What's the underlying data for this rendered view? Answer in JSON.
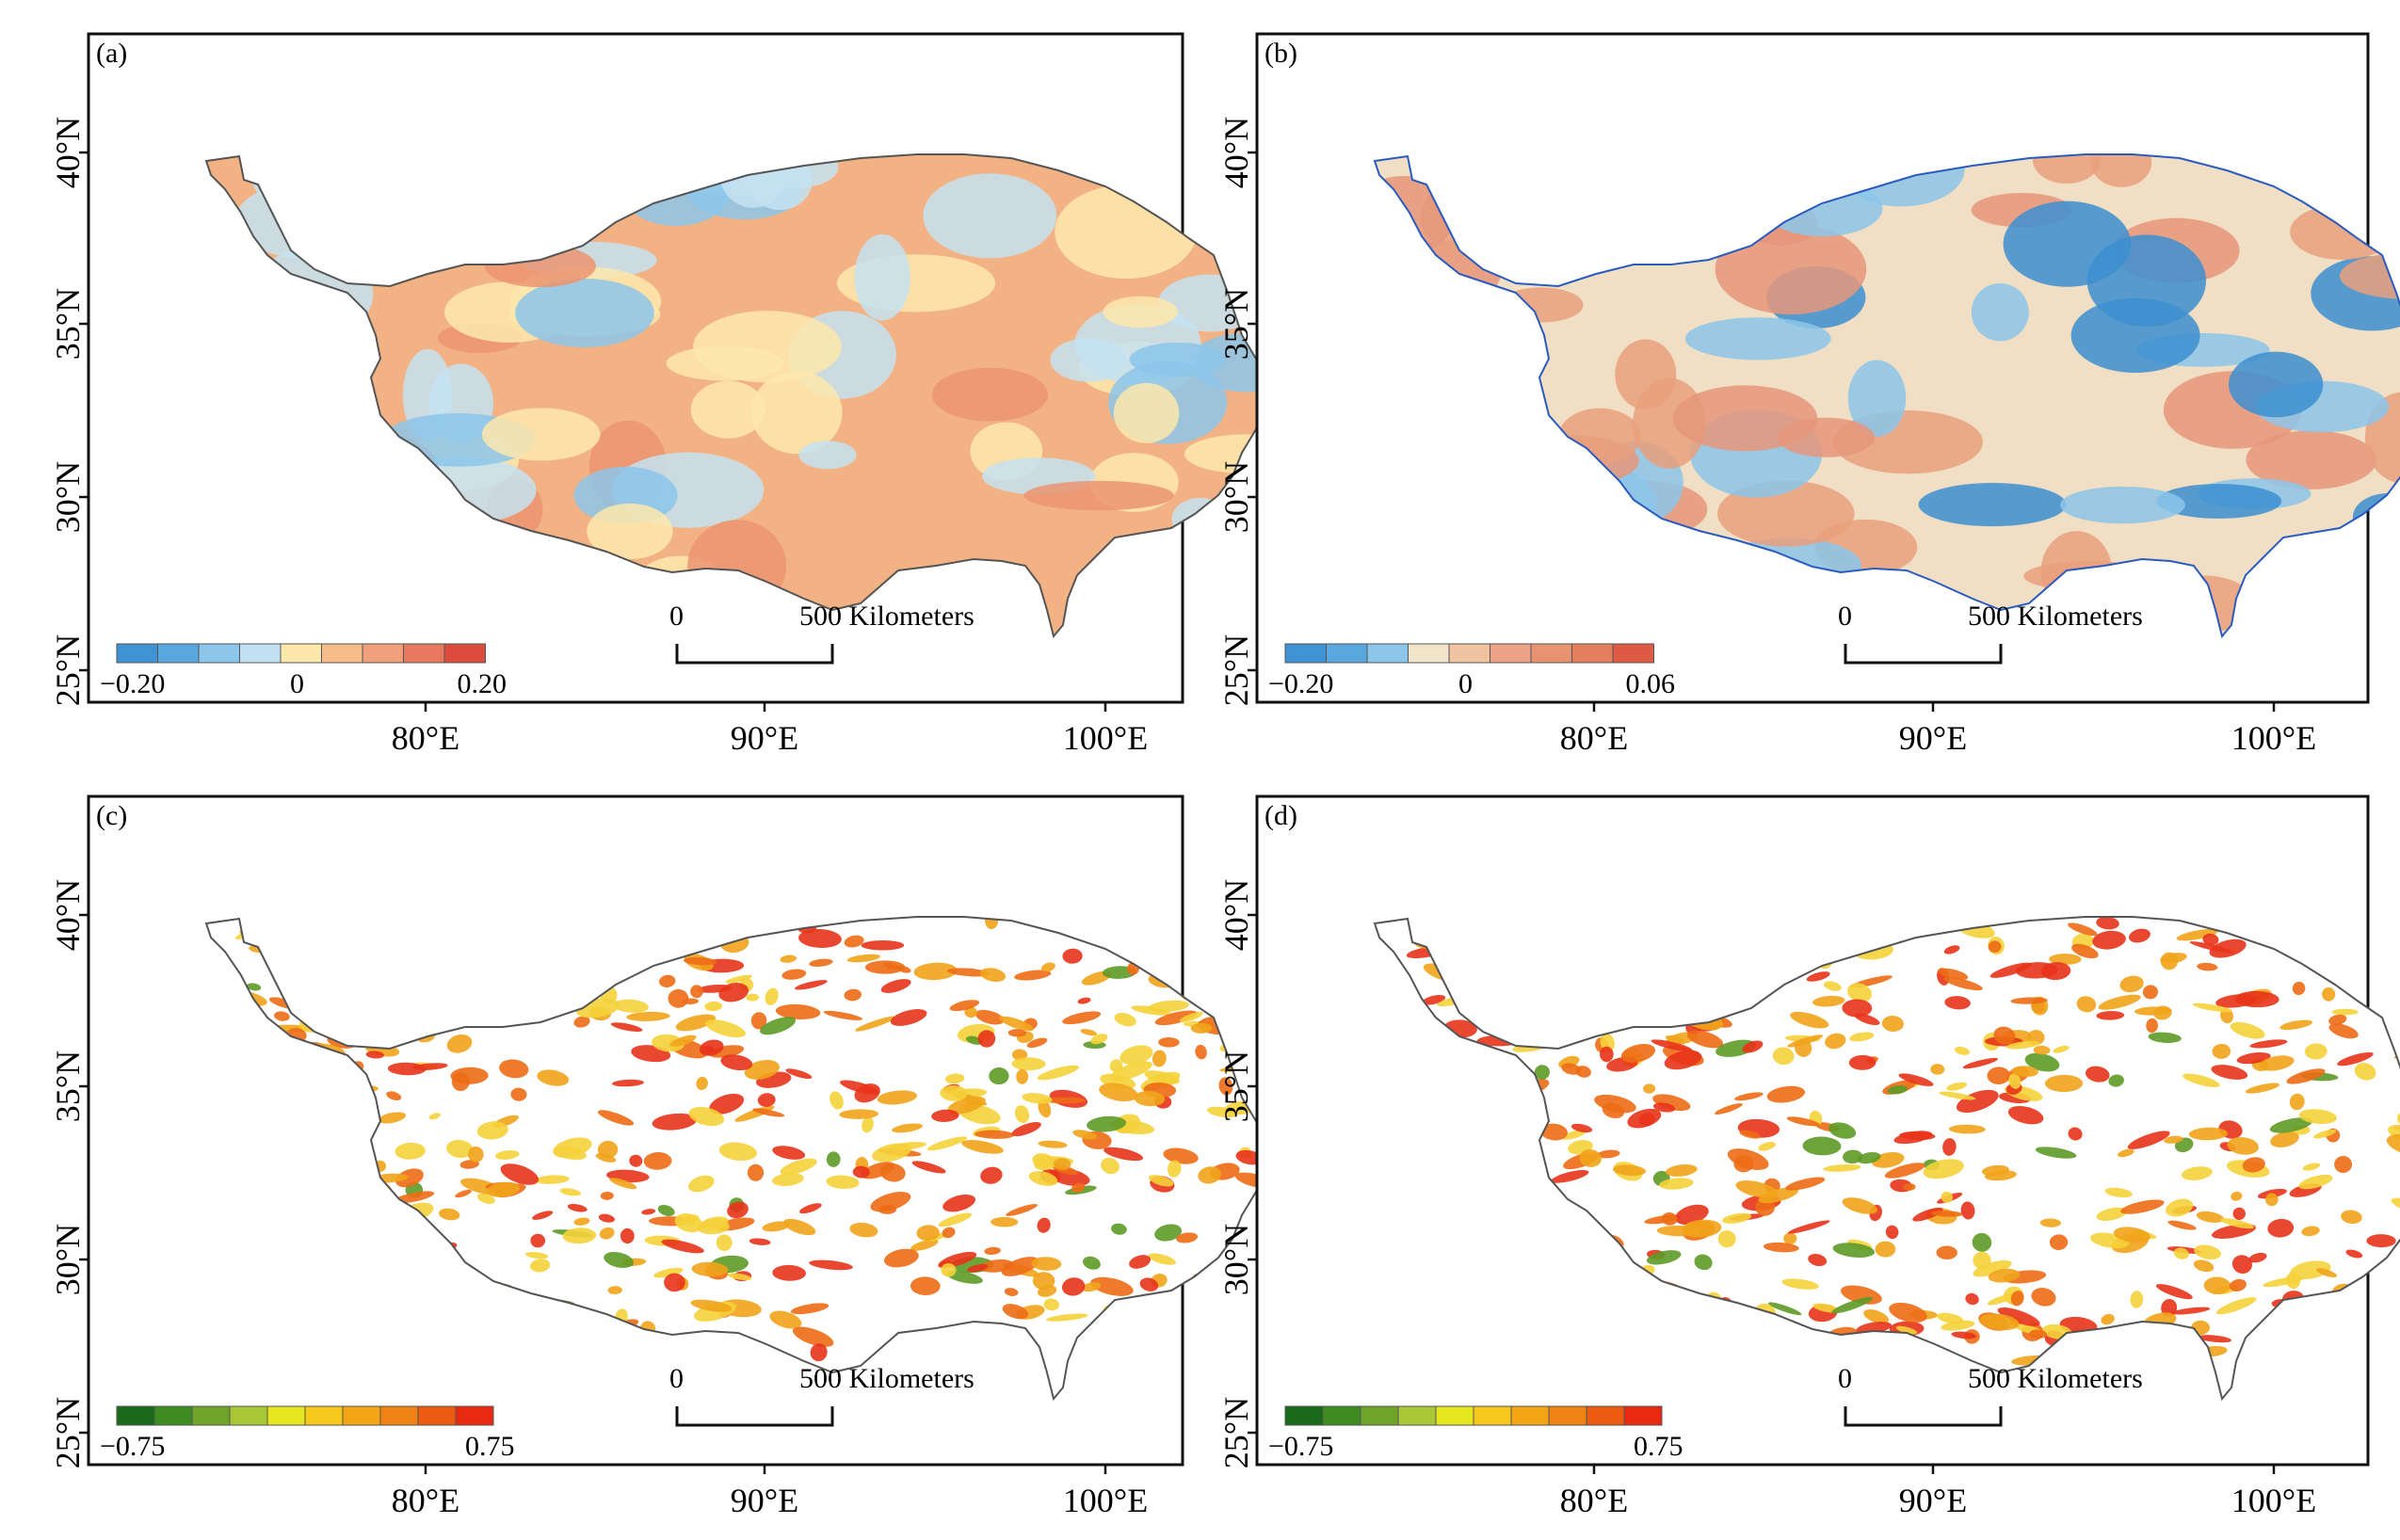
{
  "figure": {
    "panels": [
      {
        "id": "a",
        "label": "(a)",
        "lat_ticks": [
          "40°N",
          "35°N",
          "30°N",
          "25°N"
        ],
        "lon_ticks": [
          "80°E",
          "90°E",
          "100°E"
        ],
        "legend": {
          "min_label": "−0.20",
          "mid_label": "0",
          "max_label": "0.20",
          "colors": [
            "#3f93d3",
            "#5aa6de",
            "#8cc6ea",
            "#c2e0f1",
            "#fde8ab",
            "#f6bd8b",
            "#f0a07a",
            "#e77a5e",
            "#dc4b3e"
          ]
        },
        "scale": {
          "zero_label": "0",
          "dist_label": "500 Kilometers"
        },
        "fill_palette": [
          "#f3b283",
          "#fde8ab",
          "#c4e2f1",
          "#eb9471",
          "#8cc6ea"
        ]
      },
      {
        "id": "b",
        "label": "(b)",
        "lat_ticks": [
          "40°N",
          "35°N",
          "30°N",
          "25°N"
        ],
        "lon_ticks": [
          "80°E",
          "90°E",
          "100°E"
        ],
        "legend": {
          "min_label": "−0.20",
          "mid_label": "0",
          "max_label": "0.06",
          "colors": [
            "#3f93d3",
            "#5aa6de",
            "#8cc6ea",
            "#f1e6cc",
            "#f1c4a1",
            "#eda386",
            "#e8936f",
            "#e27f5c",
            "#de5a44"
          ]
        },
        "scale": {
          "zero_label": "0",
          "dist_label": "500 Kilometers"
        },
        "fill_palette": [
          "#f0dfc4",
          "#e9a07c",
          "#e6967a",
          "#8cc6ea",
          "#3c8fd0"
        ]
      },
      {
        "id": "c",
        "label": "(c)",
        "lat_ticks": [
          "40°N",
          "35°N",
          "30°N",
          "25°N"
        ],
        "lon_ticks": [
          "80°E",
          "90°E",
          "100°E"
        ],
        "legend": {
          "min_label": "−0.75",
          "max_label": "0.75",
          "colors": [
            "#1b6a1b",
            "#3e8b22",
            "#6ea428",
            "#a8c734",
            "#e6e61f",
            "#f5c81b",
            "#f3a516",
            "#ef8214",
            "#ec5b10",
            "#e8280f"
          ]
        },
        "scale": {
          "zero_label": "0",
          "dist_label": "500 Kilometers"
        },
        "fill_palette": [
          "#f5d23a",
          "#f1a41b",
          "#ed6b15",
          "#e8331a",
          "#5d9a27"
        ]
      },
      {
        "id": "d",
        "label": "(d)",
        "lat_ticks": [
          "40°N",
          "35°N",
          "30°N",
          "25°N"
        ],
        "lon_ticks": [
          "80°E",
          "90°E",
          "100°E"
        ],
        "legend": {
          "min_label": "−0.75",
          "max_label": "0.75",
          "colors": [
            "#1b6a1b",
            "#3e8b22",
            "#6ea428",
            "#a8c734",
            "#e6e61f",
            "#f5c81b",
            "#f3a516",
            "#ef8214",
            "#ec5b10",
            "#e8280f"
          ]
        },
        "scale": {
          "zero_label": "0",
          "dist_label": "500 Kilometers"
        },
        "fill_palette": [
          "#f5d23a",
          "#f1a41b",
          "#ed6b15",
          "#e8331a",
          "#5d9a27"
        ]
      }
    ]
  }
}
